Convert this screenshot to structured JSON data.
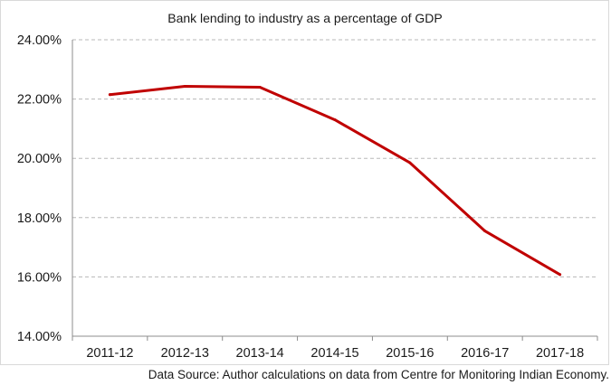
{
  "chart_data": {
    "type": "line",
    "title": "Bank lending to industry as a percentage of GDP",
    "categories": [
      "2011-12",
      "2012-13",
      "2013-14",
      "2014-15",
      "2015-16",
      "2016-17",
      "2017-18"
    ],
    "series": [
      {
        "values": [
          22.15,
          22.43,
          22.4,
          21.3,
          19.85,
          17.55,
          16.08
        ],
        "color": "#c00000"
      }
    ],
    "y_ticks": [
      "14.00%",
      "16.00%",
      "18.00%",
      "20.00%",
      "22.00%",
      "24.00%"
    ],
    "ylim": [
      14,
      24
    ],
    "y_format": "percent-2dp",
    "grid": "horizontal-dashed",
    "legend": "none",
    "xlabel": "",
    "ylabel": ""
  },
  "source_note": "Data Source: Author calculations on data from Centre for Monitoring Indian Economy."
}
